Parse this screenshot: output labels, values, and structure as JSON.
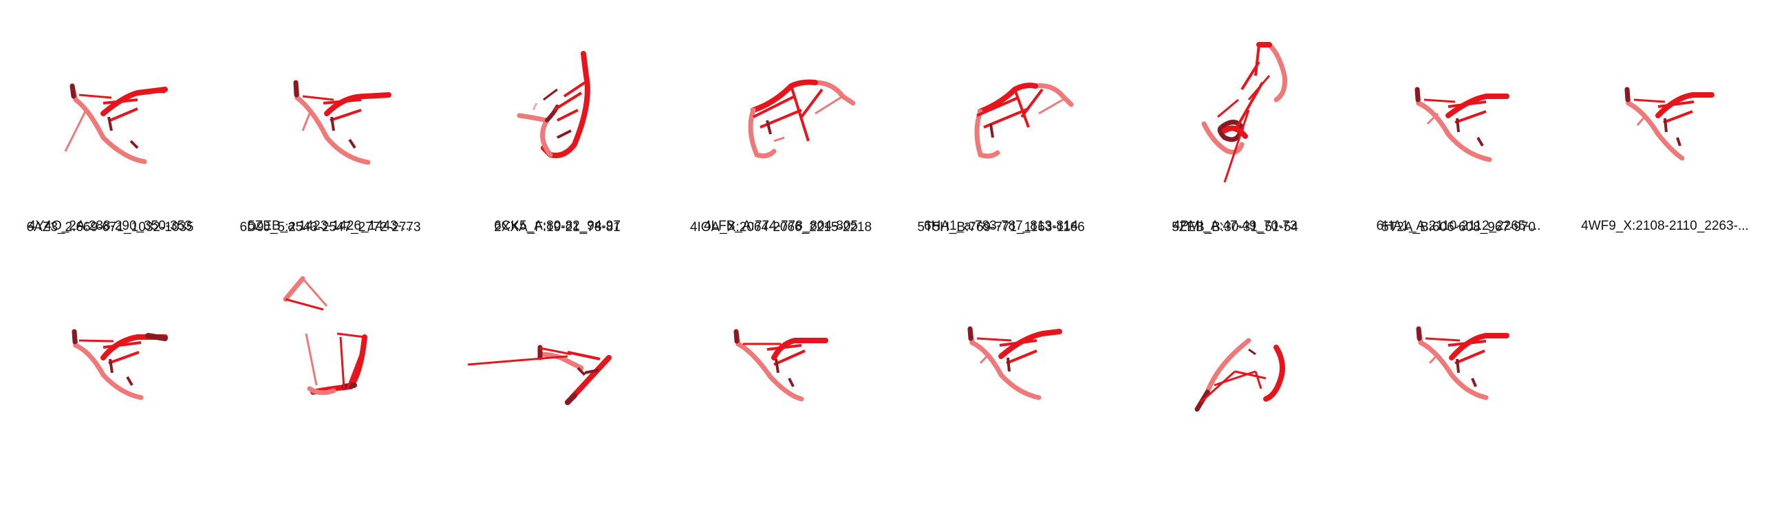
{
  "colors": {
    "bright": "#e8141c",
    "dark": "#8a1a22",
    "pink": "#ef7878",
    "light": "#f3a8a8"
  },
  "items": [
    {
      "label": "4Y4O_2A:288-290_350-353",
      "icon": "rna-structure"
    },
    {
      "label": "5ZEB_a:1423-1426_1443-...",
      "icon": "rna-structure"
    },
    {
      "label": "6CK5_A:80-82_94-97",
      "icon": "rna-structure"
    },
    {
      "label": "4LFB_A:774-778_804-805",
      "icon": "rna-structure"
    },
    {
      "label": "6HA1_a:783-787_813-814",
      "icon": "rna-structure"
    },
    {
      "label": "4PMI_A:47-49_70-73",
      "icon": "rna-structure"
    },
    {
      "label": "6HA1_A:2110-2112_2265-...",
      "icon": "rna-structure"
    },
    {
      "label": "4WF9_X:2108-2110_2263-...",
      "icon": "rna-structure"
    },
    {
      "label": "6AZ3_2:669-671_1032-1035",
      "icon": "rna-structure"
    },
    {
      "label": "6D9J_5:2543-2547_2772-2773",
      "icon": "rna-structure"
    },
    {
      "label": "2XXA_F:19-21_78-81",
      "icon": "rna-structure"
    },
    {
      "label": "4IOA_X:2064-2066_2215-2218",
      "icon": "rna-structure"
    },
    {
      "label": "5T5H_B:769-771_1163-1166",
      "icon": "rna-structure"
    },
    {
      "label": "5ZEB_B:30-31_51-54",
      "icon": "rna-structure"
    },
    {
      "label": "5T2A_B:606-608_967-970",
      "icon": "rna-structure"
    }
  ]
}
